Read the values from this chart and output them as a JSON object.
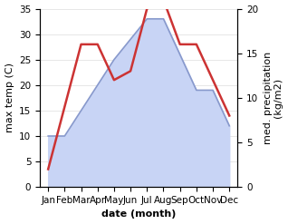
{
  "months": [
    "Jan",
    "Feb",
    "Mar",
    "Apr",
    "May",
    "Jun",
    "Jul",
    "Aug",
    "Sep",
    "Oct",
    "Nov",
    "Dec"
  ],
  "month_indices": [
    0,
    1,
    2,
    3,
    4,
    5,
    6,
    7,
    8,
    9,
    10,
    11
  ],
  "temp_max": [
    10,
    10,
    15,
    20,
    25,
    29,
    33,
    33,
    26,
    19,
    19,
    12
  ],
  "precip": [
    2,
    9,
    16,
    16,
    12,
    13,
    20,
    21,
    16,
    16,
    12,
    8
  ],
  "temp_fill_color": "#c8d4f5",
  "temp_line_color": "#8899cc",
  "precip_color": "#cc3333",
  "temp_ylim": [
    0,
    35
  ],
  "precip_ylim": [
    0,
    20
  ],
  "temp_yticks": [
    0,
    5,
    10,
    15,
    20,
    25,
    30,
    35
  ],
  "precip_yticks": [
    0,
    5,
    10,
    15,
    20
  ],
  "xlabel": "date (month)",
  "ylabel_left": "max temp (C)",
  "ylabel_right": "med. precipitation\n(kg/m2)",
  "background_color": "#ffffff",
  "label_fontsize": 8,
  "tick_fontsize": 7.5
}
